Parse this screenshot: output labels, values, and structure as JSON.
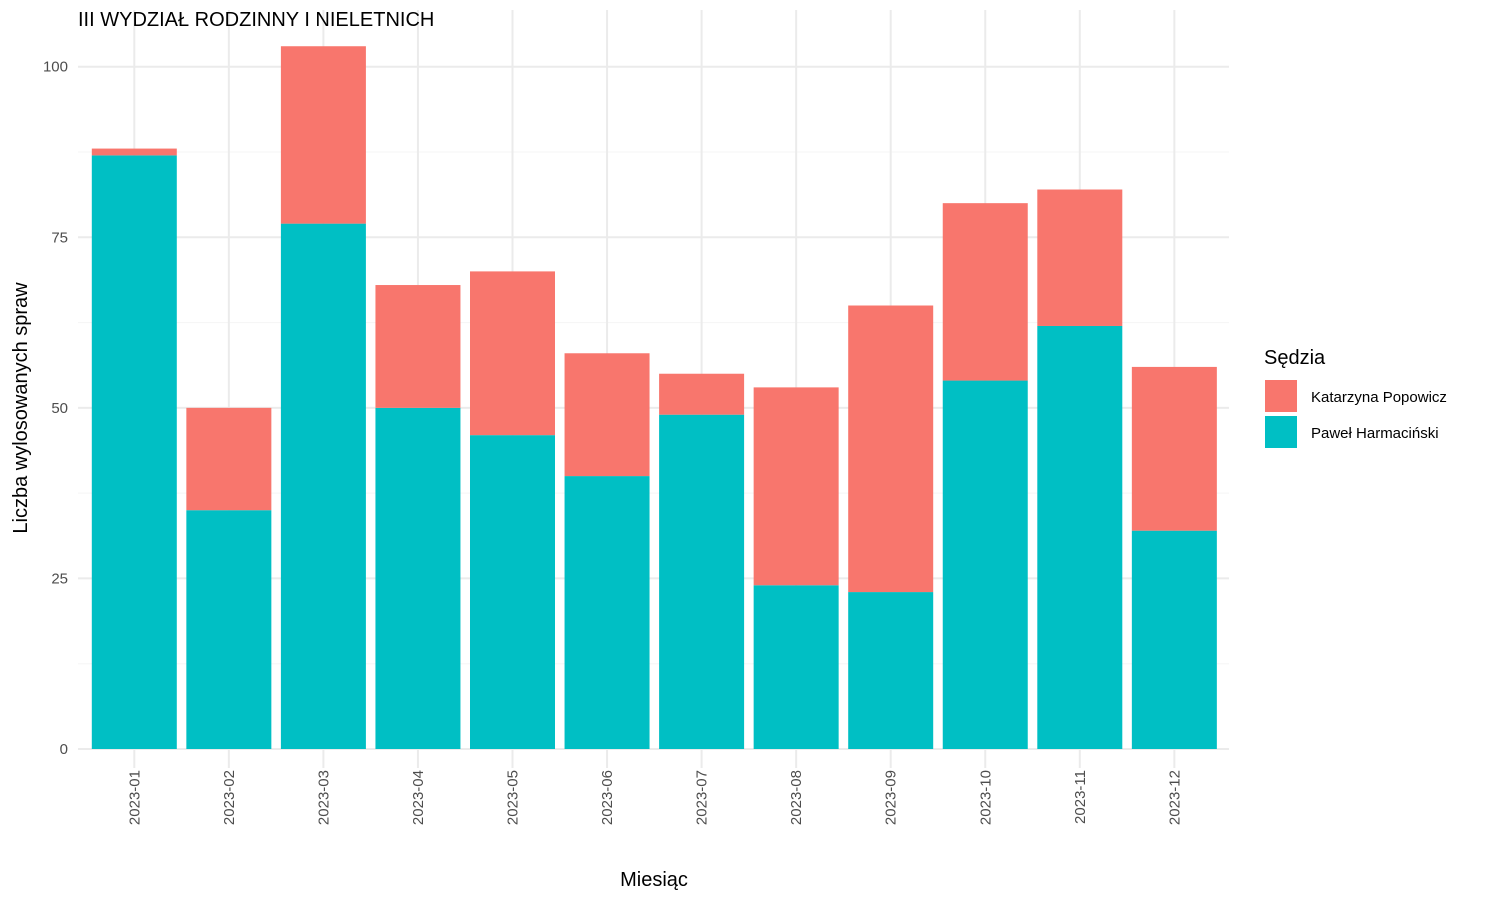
{
  "chart_data": {
    "type": "bar",
    "stacked": true,
    "title": "III WYDZIAŁ RODZINNY I NIELETNICH",
    "xlabel": "Miesiąc",
    "ylabel": "Liczba wylosowanych spraw",
    "categories": [
      "2023-01",
      "2023-02",
      "2023-03",
      "2023-04",
      "2023-05",
      "2023-06",
      "2023-07",
      "2023-08",
      "2023-09",
      "2023-10",
      "2023-11",
      "2023-12"
    ],
    "series": [
      {
        "name": "Paweł Harmaciński",
        "color": "#00BFC4",
        "values": [
          87,
          35,
          77,
          50,
          46,
          40,
          49,
          24,
          23,
          54,
          62,
          32
        ]
      },
      {
        "name": "Katarzyna Popowicz",
        "color": "#F8766D",
        "values": [
          1,
          15,
          26,
          18,
          24,
          18,
          6,
          29,
          42,
          26,
          20,
          24
        ]
      }
    ],
    "ylim": [
      0,
      105
    ],
    "yticks": [
      0,
      25,
      50,
      75,
      100
    ],
    "grid": true,
    "legend": {
      "title": "Sędzia",
      "position": "right",
      "entries": [
        {
          "label": "Katarzyna Popowicz",
          "color": "#F8766D"
        },
        {
          "label": "Paweł Harmaciński",
          "color": "#00BFC4"
        }
      ]
    }
  }
}
